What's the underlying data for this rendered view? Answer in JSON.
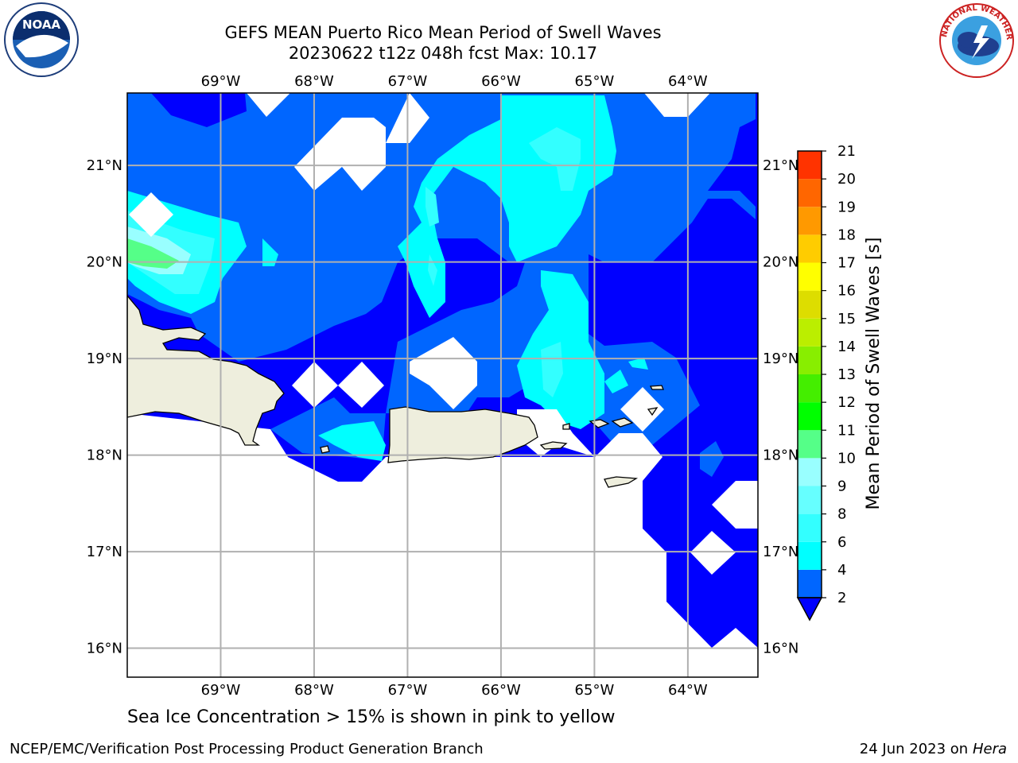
{
  "title": {
    "line1": "GEFS MEAN Puerto Rico Mean Period of Swell Waves",
    "line2": "20230622 t12z 048h fcst   Max: 10.17"
  },
  "map": {
    "lon_ticks": [
      "69°W",
      "68°W",
      "67°W",
      "66°W",
      "65°W",
      "64°W"
    ],
    "lat_ticks": [
      "21°N",
      "20°N",
      "19°N",
      "18°N",
      "17°N",
      "16°N"
    ],
    "lon_range": [
      -70.0,
      -63.25
    ],
    "lat_range": [
      15.7,
      21.75
    ],
    "ocean_color": "#0000ff",
    "land_color": "#eeeedd"
  },
  "colorbar": {
    "label": "Mean Period of Swell Waves [s]",
    "ticks": [
      "2",
      "4",
      "6",
      "8",
      "9",
      "10",
      "11",
      "12",
      "13",
      "14",
      "15",
      "16",
      "17",
      "18",
      "19",
      "20",
      "21"
    ],
    "colors": [
      "#0066ff",
      "#00ffff",
      "#33ffff",
      "#66ffff",
      "#99ffff",
      "#55ff88",
      "#00ff00",
      "#44ee00",
      "#88ee00",
      "#bbee00",
      "#dddd00",
      "#ffff00",
      "#ffcc00",
      "#ff9900",
      "#ff6600",
      "#ff3300",
      "#ff0000"
    ],
    "under_color": "#0000ff"
  },
  "caption": "Sea Ice Concentration > 15% is shown in pink to yellow",
  "footer": {
    "left": "NCEP/EMC/Verification Post Processing Product Generation Branch",
    "date": "24 Jun 2023 on",
    "host": "Hera"
  },
  "logos": {
    "noaa_text": "NOAA",
    "nws_text": "NATIONAL WEATHER SERVICE"
  }
}
